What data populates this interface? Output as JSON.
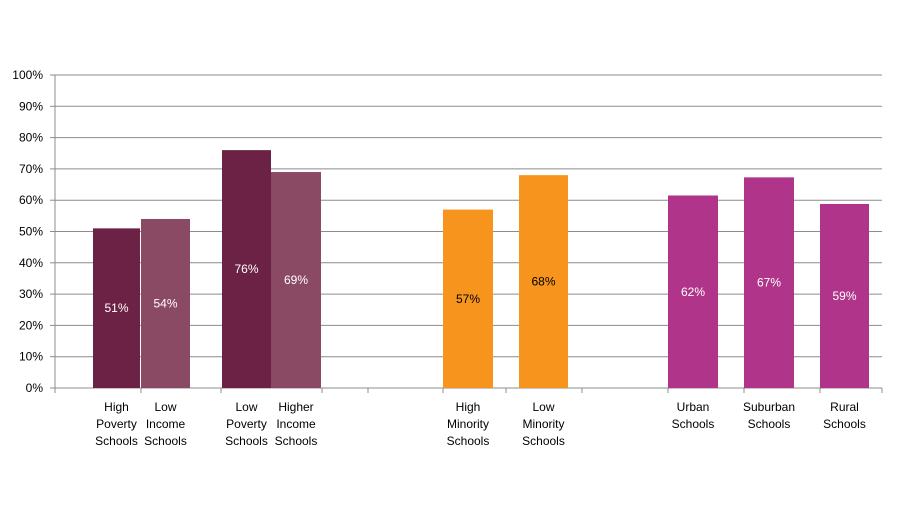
{
  "chart_data": {
    "type": "bar",
    "title": "",
    "xlabel": "",
    "ylabel": "",
    "ylim": [
      0,
      100
    ],
    "y_ticks": [
      "0%",
      "10%",
      "20%",
      "30%",
      "40%",
      "50%",
      "60%",
      "70%",
      "80%",
      "90%",
      "100%"
    ],
    "grid": true,
    "legend": "none",
    "bars": [
      {
        "label": [
          "High",
          "Poverty",
          "Schools"
        ],
        "value": 51,
        "data_label": "51%",
        "color": "#6B2245",
        "label_color": "#FFFFFF"
      },
      {
        "label": [
          "Low",
          "Income",
          "Schools"
        ],
        "value": 54,
        "data_label": "54%",
        "color": "#8B4A64",
        "label_color": "#FFFFFF"
      },
      {
        "label": [
          "Low",
          "Poverty",
          "Schools"
        ],
        "value": 76,
        "data_label": "76%",
        "color": "#6B2245",
        "label_color": "#FFFFFF"
      },
      {
        "label": [
          "Higher",
          "Income",
          "Schools"
        ],
        "value": 69,
        "data_label": "69%",
        "color": "#8B4A64",
        "label_color": "#FFFFFF"
      },
      {
        "label": [
          "High",
          "Minority",
          "Schools"
        ],
        "value": 57,
        "data_label": "57%",
        "color": "#F7941D",
        "label_color": "#000000"
      },
      {
        "label": [
          "Low",
          "Minority",
          "Schools"
        ],
        "value": 68,
        "data_label": "68%",
        "color": "#F7941D",
        "label_color": "#000000"
      },
      {
        "label": [
          "Urban",
          "Schools"
        ],
        "value": 61.5,
        "data_label": "62%",
        "color": "#B0358A",
        "label_color": "#FFFFFF"
      },
      {
        "label": [
          "Suburban",
          "Schools"
        ],
        "value": 67.3,
        "data_label": "67%",
        "color": "#B0358A",
        "label_color": "#FFFFFF"
      },
      {
        "label": [
          "Rural",
          "Schools"
        ],
        "value": 58.8,
        "data_label": "59%",
        "color": "#B0358A",
        "label_color": "#FFFFFF"
      }
    ]
  }
}
